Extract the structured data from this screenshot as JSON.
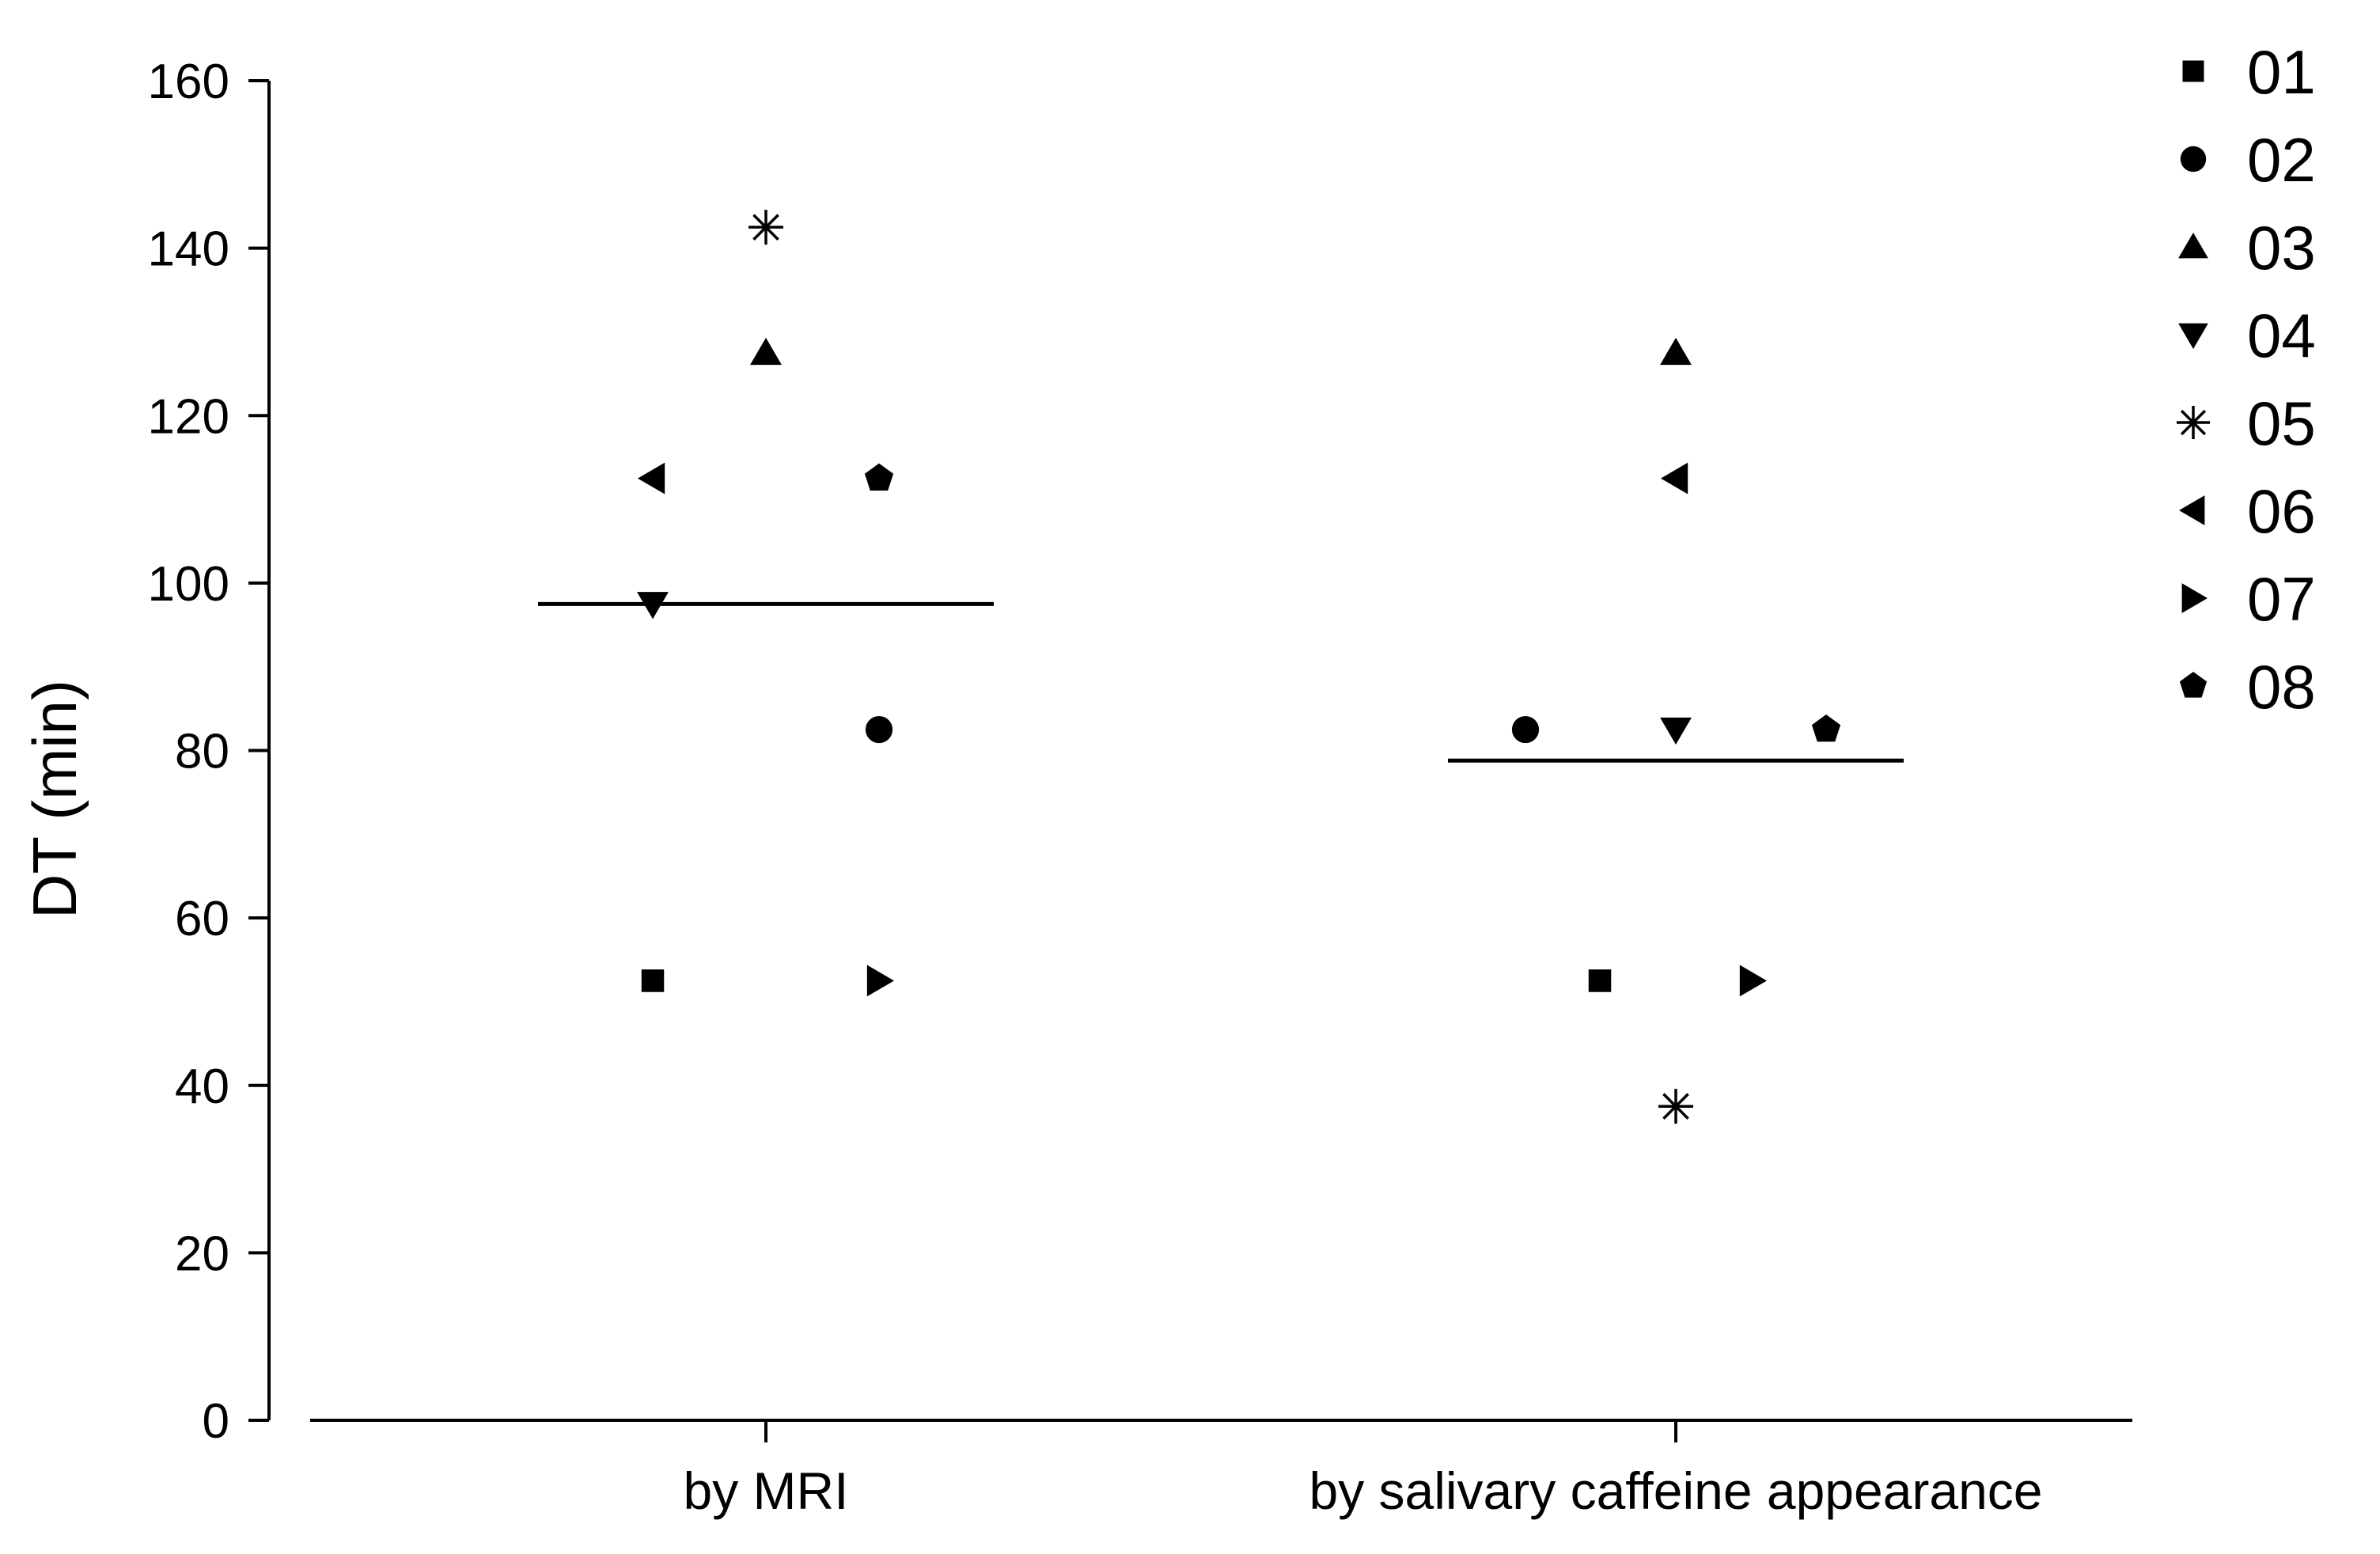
{
  "chart_data": {
    "type": "scatter",
    "title": "",
    "xlabel": "",
    "ylabel": "DT (min)",
    "ylim": [
      0,
      160
    ],
    "yticks": [
      0,
      20,
      40,
      60,
      80,
      100,
      120,
      140,
      160
    ],
    "categories": [
      "by MRI",
      "by salivary caffeine appearance"
    ],
    "legend_position": "top-right",
    "series": [
      {
        "name": "01",
        "marker": "square",
        "values": [
          52.5,
          52.5
        ]
      },
      {
        "name": "02",
        "marker": "circle",
        "values": [
          82.5,
          82.5
        ]
      },
      {
        "name": "03",
        "marker": "triangle-up",
        "values": [
          127.5,
          127.5
        ]
      },
      {
        "name": "04",
        "marker": "triangle-down",
        "values": [
          97.5,
          82.5
        ]
      },
      {
        "name": "05",
        "marker": "asterisk",
        "values": [
          142.5,
          37.5
        ]
      },
      {
        "name": "06",
        "marker": "triangle-left",
        "values": [
          112.5,
          112.5
        ]
      },
      {
        "name": "07",
        "marker": "triangle-right",
        "values": [
          52.5,
          52.5
        ]
      },
      {
        "name": "08",
        "marker": "pentagon",
        "values": [
          112.5,
          82.5
        ]
      }
    ],
    "means": [
      97.5,
      78.8
    ]
  }
}
